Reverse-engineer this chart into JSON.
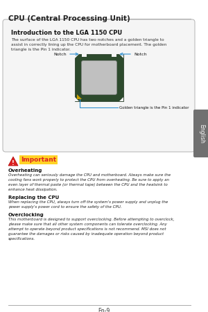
{
  "bg_color": "#ffffff",
  "page_title": "CPU (Central Processing Unit)",
  "page_number": "En-9",
  "tab_label": "English",
  "tab_bg": "#707070",
  "tab_text_color": "#ffffff",
  "box_title": "Introduction to the LGA 1150 CPU",
  "box_text": "The surface of the LGA 1150 CPU has two notches and a golden triangle to\nassist in correctly lining up the CPU for motherboard placement. The golden\ntriangle is the Pin 1 indicator.",
  "notch_label_left": "Notch",
  "notch_label_right": "Notch",
  "golden_label": "Golden triangle is the Pin 1 indicator",
  "important_label": "Important",
  "section1_title": "Overheating",
  "section1_text": "Overheating can seriously damage the CPU and motherboard. Always make sure the\ncooling fans work properly to protect the CPU from overheating. Be sure to apply an\neven layer of thermal paste (or thermal tape) between the CPU and the heatsink to\nenhance heat dissipation.",
  "section2_title": "Replacing the CPU",
  "section2_text": "When replacing the CPU, always turn off the system's power supply and unplug the\npower supply's power cord to ensure the safety of the CPU.",
  "section3_title": "Overclocking",
  "section3_text": "This motherboard is designed to support overclocking. Before attempting to overclock,\nplease make sure that all other system components can tolerate overclocking. Any\nattempt to operate beyond product specifications is not recommend. MSI does not\nguarantee the damages or risks caused by inadequate operation beyond product\nspecifications.",
  "cpu_outer_color": "#2d4a2d",
  "cpu_inner_color": "#c0c0c0",
  "cpu_gold_color": "#c8a000",
  "arrow_color": "#3090d0",
  "line_color": "#aaaaaa",
  "warn_red": "#dd2222",
  "important_bg": "#ffcc00"
}
